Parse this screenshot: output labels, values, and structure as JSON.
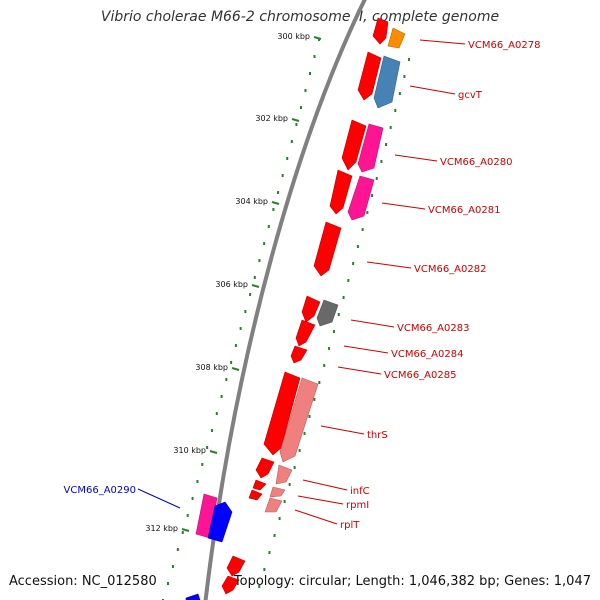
{
  "title": "Vibrio cholerae M66-2 chromosome II, complete genome",
  "footer": {
    "accession": "Accession: NC_012580",
    "summary": "Topology: circular; Length: 1,046,382 bp; Genes: 1,047"
  },
  "colors": {
    "backbone": "#808080",
    "tick": "#2e7d32",
    "forward_strand": "#ff0000",
    "label_default": "#cc0000",
    "label_highlight": "#0000cc"
  },
  "ticks": [
    {
      "kbp": 300,
      "label": "300 kbp"
    },
    {
      "kbp": 302,
      "label": "302 kbp"
    },
    {
      "kbp": 304,
      "label": "304 kbp"
    },
    {
      "kbp": 306,
      "label": "306 kbp"
    },
    {
      "kbp": 308,
      "label": "308 kbp"
    },
    {
      "kbp": 310,
      "label": "310 kbp"
    },
    {
      "kbp": 312,
      "label": "312 kbp"
    }
  ],
  "genes": [
    {
      "name": "VCM66_A0278",
      "color": "#ff8c00"
    },
    {
      "name": "gcvT",
      "color": "#4682b4"
    },
    {
      "name": "VCM66_A0280",
      "color": "#ff1493"
    },
    {
      "name": "VCM66_A0281",
      "color": "#ff1493"
    },
    {
      "name": "VCM66_A0282",
      "color": "#ff0000"
    },
    {
      "name": "VCM66_A0283",
      "color": "#696969"
    },
    {
      "name": "VCM66_A0284",
      "color": "#ff0000"
    },
    {
      "name": "VCM66_A0285",
      "color": "#ff0000"
    },
    {
      "name": "thrS",
      "color": "#f08080"
    },
    {
      "name": "infC",
      "color": "#f08080"
    },
    {
      "name": "rpmI",
      "color": "#f08080"
    },
    {
      "name": "rplT",
      "color": "#f08080"
    },
    {
      "name": "VCM66_A0290",
      "color": "#0000ff"
    }
  ]
}
